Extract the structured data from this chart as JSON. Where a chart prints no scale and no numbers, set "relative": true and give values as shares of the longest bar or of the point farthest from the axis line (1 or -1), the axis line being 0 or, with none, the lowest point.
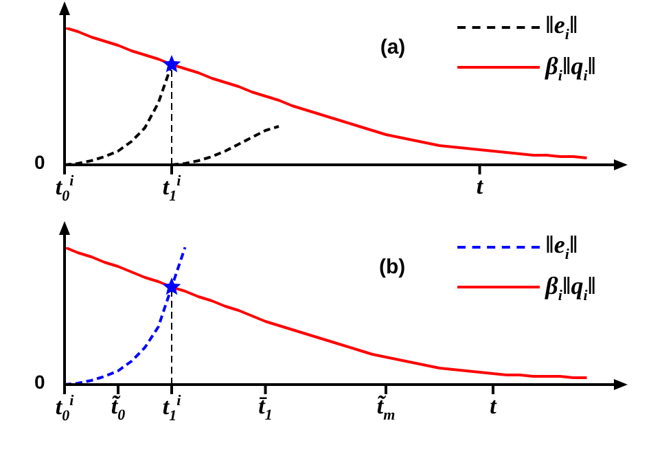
{
  "chart_data": [
    {
      "type": "line",
      "title": "(a)",
      "relative": true,
      "legend": "top right",
      "marker": "none",
      "annotations": [
        "0"
      ],
      "categories": [
        "t$_{0}$$^{i}$",
        null,
        null,
        null,
        null,
        null,
        null,
        null,
        "t$_{1}$$^{i}$",
        null,
        null,
        null,
        null,
        null,
        null,
        null,
        null,
        null,
        null,
        null,
        null,
        null,
        null,
        null,
        null,
        null,
        null,
        null,
        null,
        null,
        null,
        "t",
        null,
        null,
        null,
        null,
        null,
        null,
        null,
        null,
        null
      ],
      "ref_lines": [
        {
          "axis": "x",
          "value": "t$_{1}$$^{i}$",
          "color": "#000000",
          "line_style": "dashed"
        }
      ],
      "series": [
        {
          "name": "‖e$_{i}$‖",
          "color": "#000000",
          "line_style": "dashed",
          "values": [
            0,
            0.01,
            0.03,
            0.06,
            0.1,
            0.17,
            0.27,
            0.45,
            0.73,
            null,
            null,
            null,
            null,
            null,
            null,
            null,
            null,
            null,
            null,
            null,
            null,
            null,
            null,
            null,
            null,
            null,
            null,
            null,
            null,
            null,
            null,
            null,
            null,
            null,
            null,
            null,
            null,
            null,
            null,
            null,
            null
          ]
        },
        {
          "color": "#000000",
          "line_style": "dashed",
          "values": [
            null,
            null,
            null,
            null,
            null,
            null,
            null,
            null,
            0,
            0.01,
            0.03,
            0.06,
            0.1,
            0.15,
            0.2,
            0.25,
            0.28,
            null,
            null,
            null,
            null,
            null,
            null,
            null,
            null,
            null,
            null,
            null,
            null,
            null,
            null,
            null,
            null,
            null,
            null,
            null,
            null,
            null,
            null,
            null,
            null
          ]
        },
        {
          "name": "β$_{i}$‖q$_{i}$‖",
          "color": "#ff0000",
          "line_style": "solid",
          "values": [
            1.0,
            0.97,
            0.93,
            0.9,
            0.87,
            0.83,
            0.8,
            0.77,
            0.73,
            0.7,
            0.67,
            0.63,
            0.6,
            0.57,
            0.53,
            0.5,
            0.47,
            0.43,
            0.4,
            0.37,
            0.34,
            0.31,
            0.28,
            0.25,
            0.22,
            0.2,
            0.18,
            0.16,
            0.14,
            0.13,
            0.12,
            0.11,
            0.1,
            0.09,
            0.08,
            0.07,
            0.07,
            0.06,
            0.06,
            0.05,
            null
          ]
        },
        {
          "type": "scatter",
          "color": "#0000ff",
          "marker": "star",
          "x": [
            "t$_{1}$$^{i}$"
          ],
          "values": [
            0.73
          ]
        }
      ]
    },
    {
      "type": "line",
      "title": "(b)",
      "relative": true,
      "legend": "top right",
      "marker": "none",
      "annotations": [
        "0"
      ],
      "categories": [
        "t$_{0}$$^{i}$",
        null,
        null,
        null,
        "t̃$_{0}$",
        null,
        null,
        null,
        "t$_{1}$$^{i}$",
        null,
        null,
        null,
        null,
        null,
        null,
        "t̄$_{1}$",
        null,
        null,
        null,
        null,
        null,
        null,
        null,
        null,
        "t̃$_{m}$",
        null,
        null,
        null,
        null,
        null,
        null,
        null,
        "t",
        null,
        null,
        null,
        null,
        null,
        null,
        null,
        null
      ],
      "ref_lines": [
        {
          "axis": "x",
          "value": "t$_{1}$$^{i}$",
          "color": "#000000",
          "line_style": "dashed"
        }
      ],
      "series": [
        {
          "name": "‖e$_{i}$‖",
          "color": "#0000ff",
          "line_style": "dashed",
          "values": [
            0,
            0.01,
            0.03,
            0.06,
            0.1,
            0.17,
            0.27,
            0.42,
            0.71,
            1.0,
            null,
            null,
            null,
            null,
            null,
            null,
            null,
            null,
            null,
            null,
            null,
            null,
            null,
            null,
            null,
            null,
            null,
            null,
            null,
            null,
            null,
            null,
            null,
            null,
            null,
            null,
            null,
            null,
            null,
            null,
            null
          ]
        },
        {
          "name": "β$_{i}$‖q$_{i}$‖",
          "color": "#ff0000",
          "line_style": "solid",
          "values": [
            1.0,
            0.96,
            0.93,
            0.89,
            0.86,
            0.82,
            0.78,
            0.75,
            0.71,
            0.68,
            0.64,
            0.61,
            0.57,
            0.54,
            0.5,
            0.46,
            0.43,
            0.4,
            0.37,
            0.34,
            0.31,
            0.28,
            0.25,
            0.22,
            0.2,
            0.18,
            0.16,
            0.14,
            0.12,
            0.11,
            0.1,
            0.09,
            0.08,
            0.07,
            0.07,
            0.06,
            0.06,
            0.06,
            0.05,
            0.05,
            null
          ]
        },
        {
          "type": "scatter",
          "color": "#0000ff",
          "marker": "star",
          "x": [
            "t$_{1}$$^{i}$"
          ],
          "values": [
            0.71
          ]
        }
      ]
    }
  ]
}
